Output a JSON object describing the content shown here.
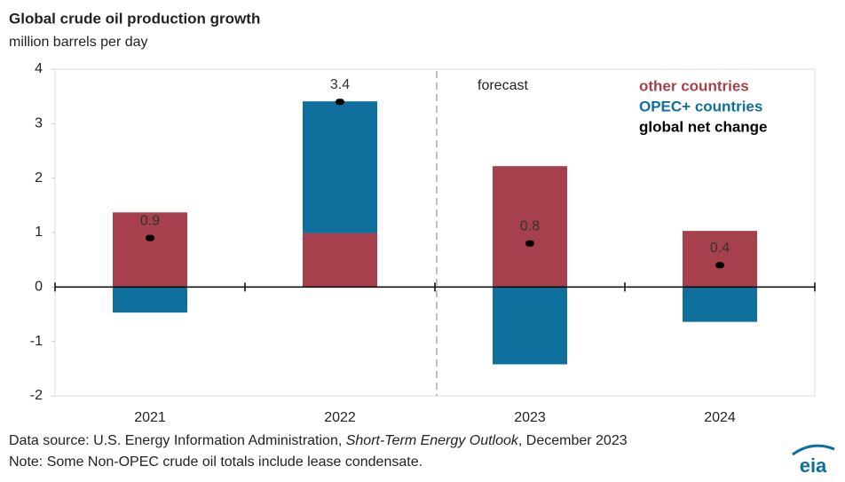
{
  "chart_data": {
    "type": "bar",
    "stacked": true,
    "title": "Global crude oil production growth",
    "subtitle": "million barrels per day",
    "categories": [
      "2021",
      "2022",
      "2023",
      "2024"
    ],
    "series": [
      {
        "name": "other countries",
        "color": "#a6404c",
        "values": [
          1.37,
          0.99,
          2.22,
          1.03
        ]
      },
      {
        "name": "OPEC+ countries",
        "color": "#0f6f9c",
        "values": [
          -0.47,
          2.42,
          -1.42,
          -0.64
        ]
      },
      {
        "name": "global net change",
        "type": "dot",
        "color": "#000000",
        "values": [
          0.9,
          3.4,
          0.8,
          0.4
        ]
      }
    ],
    "ylim": [
      -2,
      4
    ],
    "yticks": [
      -2,
      -1,
      0,
      1,
      2,
      3,
      4
    ],
    "annotation": "forecast",
    "source": {
      "prefix": "Data source: U.S. Energy Information Administration, ",
      "title": "Short-Term Energy Outlook",
      "suffix": ", December 2023"
    },
    "note": "Note: Some Non-OPEC crude oil totals include lease condensate.",
    "logo": "eia"
  }
}
